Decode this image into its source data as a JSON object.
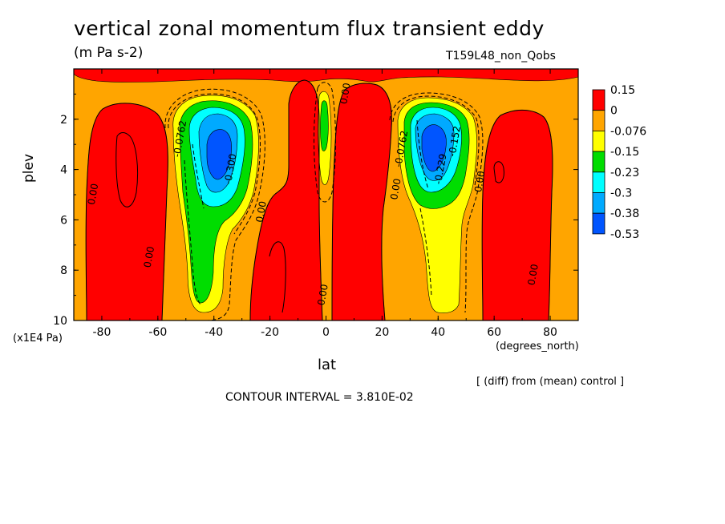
{
  "header": {
    "title": "vertical zonal momentum flux transient eddy",
    "units": "(m Pa s-2)",
    "run_name": "T159L48_non_Qobs"
  },
  "footer": {
    "diff_note": "[ (diff) from (mean) control ]",
    "contour_interval": "CONTOUR INTERVAL = 3.810E-02"
  },
  "colors": {
    "red": "#ff0000",
    "orange": "#ffa500",
    "yellow": "#ffff00",
    "green": "#00dd00",
    "cyan": "#00ffff",
    "lightblue": "#00aaff",
    "blue": "#0055ff"
  },
  "chart_data": {
    "type": "contour",
    "xlabel": "lat",
    "xunits": "(degrees_north)",
    "ylabel": "plev",
    "yunits": "(x1E4 Pa)",
    "xlim": [
      -90,
      90
    ],
    "ylim": [
      0,
      10
    ],
    "y_inverted": true,
    "xticks": [
      "-80",
      "-60",
      "-40",
      "-20",
      "0",
      "20",
      "40",
      "60",
      "80"
    ],
    "yticks": [
      "2",
      "4",
      "6",
      "8",
      "10"
    ],
    "colorbar": {
      "labels": [
        "0.15",
        "0",
        "-0.076",
        "-0.15",
        "-0.23",
        "-0.3",
        "-0.38",
        "-0.53"
      ],
      "colors": [
        "#ff0000",
        "#ffa500",
        "#ffff00",
        "#00dd00",
        "#00ffff",
        "#00aaff",
        "#0055ff"
      ]
    },
    "contour_labels": [
      {
        "text": "0.00",
        "lat": -82,
        "plev": 5.0
      },
      {
        "text": "0.00",
        "lat": -62,
        "plev": 7.5
      },
      {
        "text": "0.00",
        "lat": -22,
        "plev": 5.7
      },
      {
        "text": "-0.0762",
        "lat": -51,
        "plev": 2.8
      },
      {
        "text": "-0.300",
        "lat": -33,
        "plev": 4.0
      },
      {
        "text": "0.00",
        "lat": 0,
        "plev": 9.0
      },
      {
        "text": "0.00",
        "lat": 8,
        "plev": 1.0
      },
      {
        "text": "0.00",
        "lat": 26,
        "plev": 4.8
      },
      {
        "text": "-0.0762",
        "lat": 28,
        "plev": 3.2
      },
      {
        "text": "-0.229",
        "lat": 42,
        "plev": 4.0
      },
      {
        "text": "-0.152",
        "lat": 47,
        "plev": 2.9
      },
      {
        "text": "0.00",
        "lat": 56,
        "plev": 4.5
      },
      {
        "text": "0.00",
        "lat": 75,
        "plev": 8.2
      }
    ],
    "regions": [
      {
        "level": "red",
        "desc": "SH high latitude column",
        "lat": [
          -85,
          -68
        ],
        "plev": [
          1.5,
          10
        ]
      },
      {
        "level": "red",
        "desc": "SH mid column",
        "lat": [
          -28,
          -10
        ],
        "plev": [
          3.5,
          10
        ]
      },
      {
        "level": "red",
        "desc": "equatorial columns",
        "lat": [
          -15,
          20
        ],
        "plev": [
          0,
          10
        ]
      },
      {
        "level": "red",
        "desc": "NH mid column",
        "lat": [
          10,
          25
        ],
        "plev": [
          1,
          10
        ]
      },
      {
        "level": "red",
        "desc": "NH high latitude column",
        "lat": [
          58,
          78
        ],
        "plev": [
          1.5,
          10
        ]
      },
      {
        "level": "blue",
        "desc": "SH jet core",
        "lat": [
          -40,
          -33
        ],
        "plev": [
          3,
          4.5
        ]
      },
      {
        "level": "blue",
        "desc": "NH jet core",
        "lat": [
          32,
          42
        ],
        "plev": [
          2.5,
          4.5
        ]
      }
    ]
  }
}
